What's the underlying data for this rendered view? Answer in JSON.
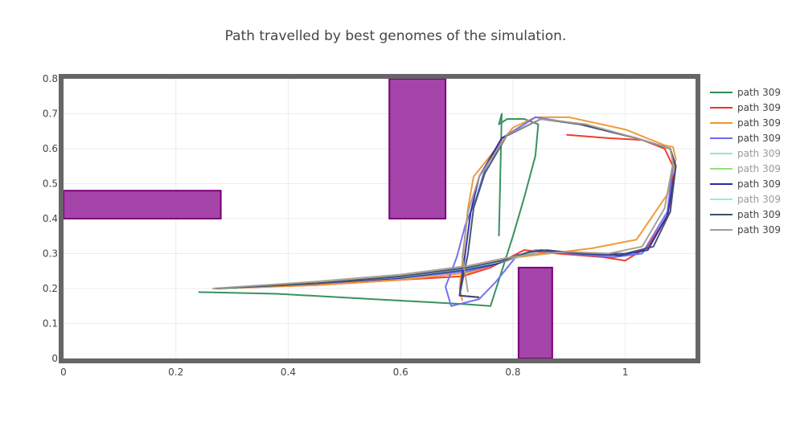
{
  "chart_data": {
    "type": "line",
    "title": "Path travelled by best genomes of the simulation.",
    "xlabel": "",
    "ylabel": "",
    "xlim": [
      0,
      1.125
    ],
    "ylim": [
      0,
      0.8
    ],
    "x_ticks": [
      0,
      0.2,
      0.4,
      0.6,
      0.8,
      1
    ],
    "y_ticks": [
      0,
      0.1,
      0.2,
      0.3,
      0.4,
      0.5,
      0.6,
      0.7,
      0.8
    ],
    "x_tick_labels": [
      "0",
      "0.2",
      "0.4",
      "0.6",
      "0.8",
      "1"
    ],
    "y_tick_labels": [
      "0",
      "0.1",
      "0.2",
      "0.3",
      "0.4",
      "0.5",
      "0.6",
      "0.7",
      "0.8"
    ],
    "grid": true,
    "legend": "right",
    "obstacles": [
      {
        "x0": 0,
        "x1": 0.28,
        "y0": 0.4,
        "y1": 0.48,
        "color": "#9b30a0"
      },
      {
        "x0": 0.58,
        "x1": 0.68,
        "y0": 0.4,
        "y1": 0.8,
        "color": "#9b30a0"
      },
      {
        "x0": 0.81,
        "x1": 0.87,
        "y0": 0,
        "y1": 0.26,
        "color": "#9b30a0"
      }
    ],
    "series": [
      {
        "name": "path 309",
        "color": "#2e8b57",
        "faded": false,
        "x": [
          0.24,
          0.38,
          0.55,
          0.72,
          0.76,
          0.78,
          0.8,
          0.82,
          0.84,
          0.845,
          0.82,
          0.79,
          0.775,
          0.78,
          0.775
        ],
        "y": [
          0.19,
          0.185,
          0.17,
          0.155,
          0.15,
          0.25,
          0.35,
          0.46,
          0.58,
          0.67,
          0.685,
          0.685,
          0.67,
          0.7,
          0.35
        ]
      },
      {
        "name": "path 309",
        "color": "#ee3322",
        "faded": false,
        "x": [
          0.27,
          0.45,
          0.6,
          0.71,
          0.76,
          0.82,
          0.88,
          0.96,
          1.0,
          1.04,
          1.08,
          1.085,
          1.07,
          1.03,
          0.97,
          0.895
        ],
        "y": [
          0.2,
          0.21,
          0.225,
          0.235,
          0.26,
          0.31,
          0.3,
          0.29,
          0.28,
          0.32,
          0.42,
          0.55,
          0.6,
          0.625,
          0.63,
          0.64
        ]
      },
      {
        "name": "path 309",
        "color": "#f0962e",
        "faded": false,
        "x": [
          0.27,
          0.45,
          0.6,
          0.72,
          0.81,
          0.94,
          1.02,
          1.075,
          1.09,
          1.085,
          1.07,
          1.0,
          0.9,
          0.84,
          0.8,
          0.73,
          0.72,
          0.705,
          0.71
        ],
        "y": [
          0.2,
          0.21,
          0.225,
          0.245,
          0.29,
          0.315,
          0.34,
          0.47,
          0.57,
          0.605,
          0.61,
          0.655,
          0.69,
          0.69,
          0.66,
          0.52,
          0.43,
          0.2,
          0.165
        ]
      },
      {
        "name": "path 309",
        "color": "#6b6bf0",
        "faded": false,
        "x": [
          0.27,
          0.45,
          0.6,
          0.72,
          0.76,
          0.81,
          0.84,
          0.9,
          0.98,
          1.03,
          1.075,
          1.085,
          1.08,
          1.02,
          0.92,
          0.84,
          0.78,
          0.75,
          0.735,
          0.715,
          0.7,
          0.68,
          0.69,
          0.74,
          0.77,
          0.81
        ],
        "y": [
          0.2,
          0.215,
          0.23,
          0.25,
          0.265,
          0.295,
          0.31,
          0.3,
          0.29,
          0.3,
          0.42,
          0.56,
          0.6,
          0.63,
          0.67,
          0.69,
          0.63,
          0.54,
          0.46,
          0.38,
          0.29,
          0.205,
          0.15,
          0.17,
          0.22,
          0.3
        ]
      },
      {
        "name": "path 309",
        "color": "#9adfe0",
        "faded": true,
        "x": [
          0.28,
          0.45,
          0.6,
          0.72,
          0.78,
          0.84
        ],
        "y": [
          0.2,
          0.215,
          0.23,
          0.255,
          0.275,
          0.305
        ]
      },
      {
        "name": "path 309",
        "color": "#93e07e",
        "faded": true,
        "x": [
          0.28,
          0.45,
          0.6,
          0.72,
          0.78,
          0.84
        ],
        "y": [
          0.2,
          0.215,
          0.232,
          0.256,
          0.277,
          0.307
        ]
      },
      {
        "name": "path 309",
        "color": "#2a2aa8",
        "faded": false,
        "x": [
          0.27,
          0.45,
          0.6,
          0.72,
          0.77,
          0.82,
          0.85,
          0.92,
          0.99,
          1.04,
          1.075,
          1.09,
          1.08,
          1.02,
          0.92,
          0.85,
          0.78,
          0.74,
          0.725,
          0.715,
          0.705,
          0.74
        ],
        "y": [
          0.2,
          0.215,
          0.23,
          0.255,
          0.27,
          0.3,
          0.31,
          0.3,
          0.295,
          0.31,
          0.41,
          0.55,
          0.6,
          0.63,
          0.67,
          0.685,
          0.63,
          0.52,
          0.42,
          0.3,
          0.18,
          0.175
        ]
      },
      {
        "name": "path 309",
        "color": "#98f0c8",
        "faded": true,
        "x": [
          0.28,
          0.45,
          0.6,
          0.72,
          0.78,
          0.84
        ],
        "y": [
          0.2,
          0.216,
          0.233,
          0.258,
          0.278,
          0.308
        ]
      },
      {
        "name": "path 309",
        "color": "#3e4e6e",
        "faded": false,
        "x": [
          0.27,
          0.45,
          0.6,
          0.72,
          0.78,
          0.83,
          0.86,
          0.92,
          1.0,
          1.05,
          1.08,
          1.09,
          1.08,
          1.02,
          0.92,
          0.85,
          0.79,
          0.75,
          0.73,
          0.72,
          0.705,
          0.74
        ],
        "y": [
          0.2,
          0.215,
          0.235,
          0.26,
          0.28,
          0.305,
          0.31,
          0.3,
          0.3,
          0.32,
          0.42,
          0.55,
          0.6,
          0.63,
          0.67,
          0.685,
          0.64,
          0.53,
          0.43,
          0.3,
          0.18,
          0.175
        ]
      },
      {
        "name": "path 309",
        "color": "#a89c8c",
        "faded": false,
        "x": [
          0.265,
          0.45,
          0.6,
          0.72,
          0.78,
          0.84,
          0.9,
          0.97,
          1.03,
          1.07,
          1.085,
          1.08,
          1.02,
          0.93,
          0.85,
          0.79,
          0.74,
          0.72,
          0.71,
          0.72
        ],
        "y": [
          0.2,
          0.22,
          0.24,
          0.265,
          0.285,
          0.3,
          0.305,
          0.3,
          0.32,
          0.43,
          0.56,
          0.6,
          0.63,
          0.67,
          0.685,
          0.64,
          0.52,
          0.42,
          0.29,
          0.19
        ]
      }
    ]
  }
}
